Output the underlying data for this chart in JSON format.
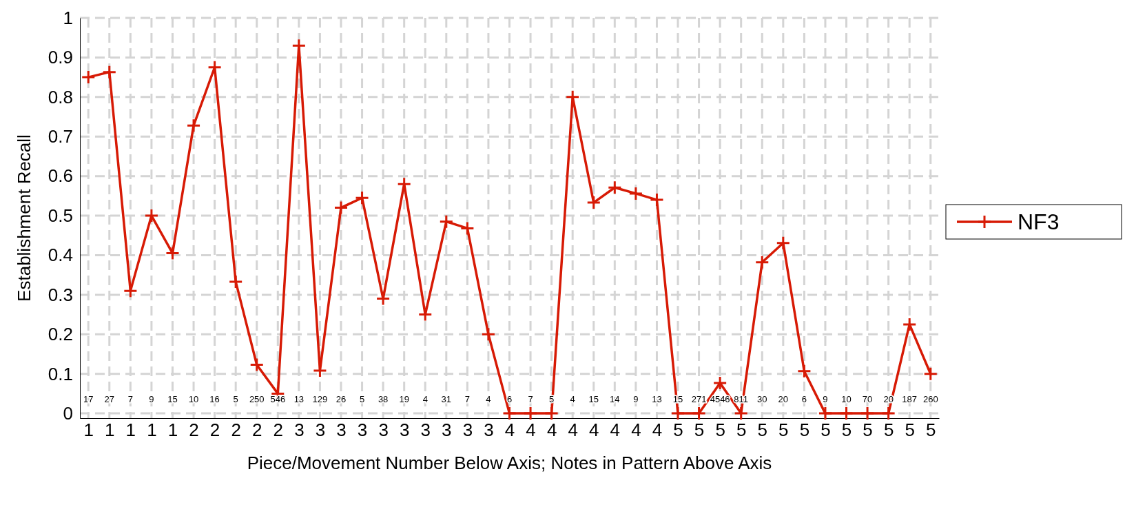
{
  "chart_data": {
    "type": "line",
    "xlabel": "Piece/Movement Number Below Axis; Notes in Pattern Above Axis",
    "ylabel": "Establishment Recall",
    "categories": [
      "1",
      "1",
      "1",
      "1",
      "1",
      "2",
      "2",
      "2",
      "2",
      "2",
      "3",
      "3",
      "3",
      "3",
      "3",
      "3",
      "3",
      "3",
      "3",
      "3",
      "4",
      "4",
      "4",
      "4",
      "4",
      "4",
      "4",
      "4",
      "5",
      "5",
      "5",
      "5",
      "5",
      "5",
      "5",
      "5",
      "5",
      "5",
      "5",
      "5",
      "5"
    ],
    "series": [
      {
        "name": "NF3",
        "color": "#d71a05",
        "values": [
          0.85,
          0.863,
          0.31,
          0.5,
          0.405,
          0.728,
          0.875,
          0.333,
          0.123,
          0.05,
          0.93,
          0.108,
          0.52,
          0.545,
          0.29,
          0.58,
          0.25,
          0.485,
          0.468,
          0.2,
          0,
          0,
          0,
          0.8,
          0.533,
          0.571,
          0.556,
          0.54,
          0,
          0,
          0.077,
          0,
          0.382,
          0.431,
          0.107,
          0,
          0,
          0,
          0,
          0.225,
          0.1
        ]
      }
    ],
    "annotations": [
      "17",
      "27",
      "7",
      "9",
      "15",
      "10",
      "16",
      "5",
      "250",
      "546",
      "13",
      "129",
      "26",
      "5",
      "38",
      "19",
      "4",
      "31",
      "7",
      "4",
      "6",
      "7",
      "5",
      "4",
      "15",
      "14",
      "9",
      "13",
      "15",
      "271",
      "4546",
      "811",
      "30",
      "20",
      "6",
      "9",
      "10",
      "70",
      "20",
      "187",
      "260"
    ],
    "ylim": [
      -0.012,
      1
    ],
    "yticks": [
      0,
      0.1,
      0.2,
      0.3,
      0.4,
      0.5,
      0.6,
      0.7,
      0.8,
      0.9,
      1
    ],
    "grid": true,
    "legend": "right",
    "marker": "cross",
    "line_style": "solid"
  }
}
